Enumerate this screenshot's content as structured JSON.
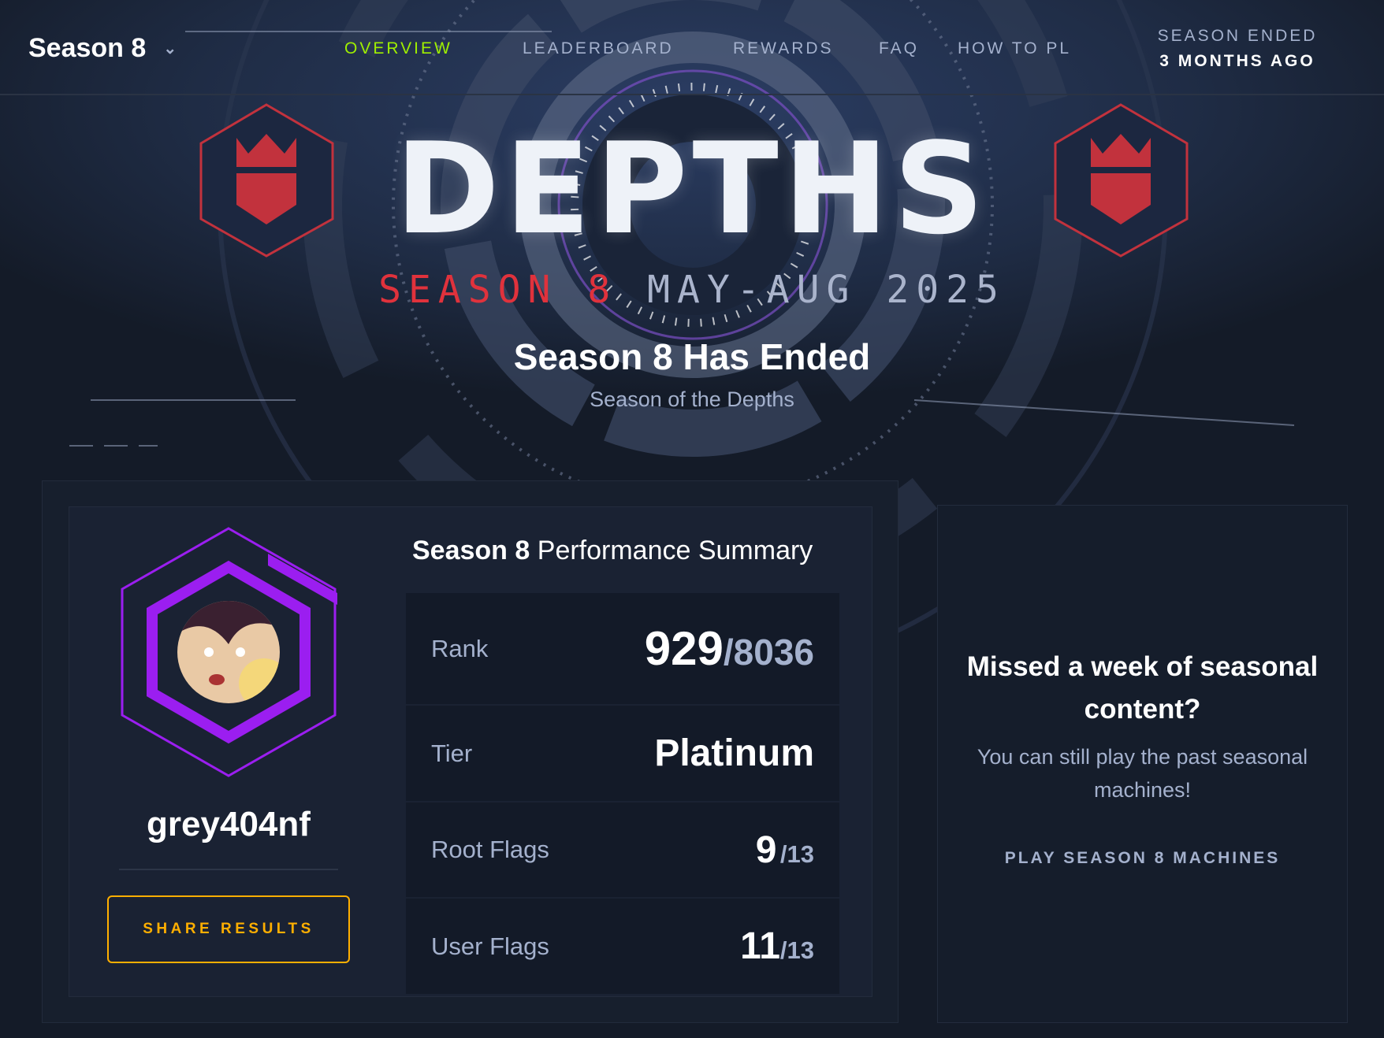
{
  "nav": {
    "season_selector": "Season 8",
    "items": [
      {
        "label": "OVERVIEW",
        "active": true
      },
      {
        "label": "LEADERBOARD",
        "active": false
      },
      {
        "label": "REWARDS",
        "active": false
      },
      {
        "label": "FAQ",
        "active": false
      },
      {
        "label": "HOW TO PL",
        "active": false
      }
    ],
    "status_prefix": "SEASON ENDED",
    "status_time": "3 MONTHS AGO",
    "accent_color": "#9fef00"
  },
  "banner": {
    "logo_text": "DEPTHS",
    "season_label": "SEASON 8",
    "date_range": "MAY-AUG 2025",
    "title": "Season 8 Has Ended",
    "subtitle": "Season of the Depths"
  },
  "profile": {
    "username": "grey404nf",
    "share_label": "SHARE RESULTS",
    "tier_ring_color": "#9b1ef0"
  },
  "summary": {
    "title_bold": "Season 8",
    "title_rest": "Performance Summary",
    "rows": [
      {
        "label": "Rank",
        "value": "929",
        "total": "/8036"
      },
      {
        "label": "Tier",
        "value": "Platinum",
        "total": ""
      },
      {
        "label": "Root Flags",
        "value": "9",
        "total": "/13"
      },
      {
        "label": "User Flags",
        "value": "11",
        "total": "/13"
      }
    ]
  },
  "promo": {
    "heading": "Missed a week of seasonal content?",
    "body": "You can still play the past seasonal machines!",
    "link": "PLAY SEASON 8 MACHINES"
  }
}
